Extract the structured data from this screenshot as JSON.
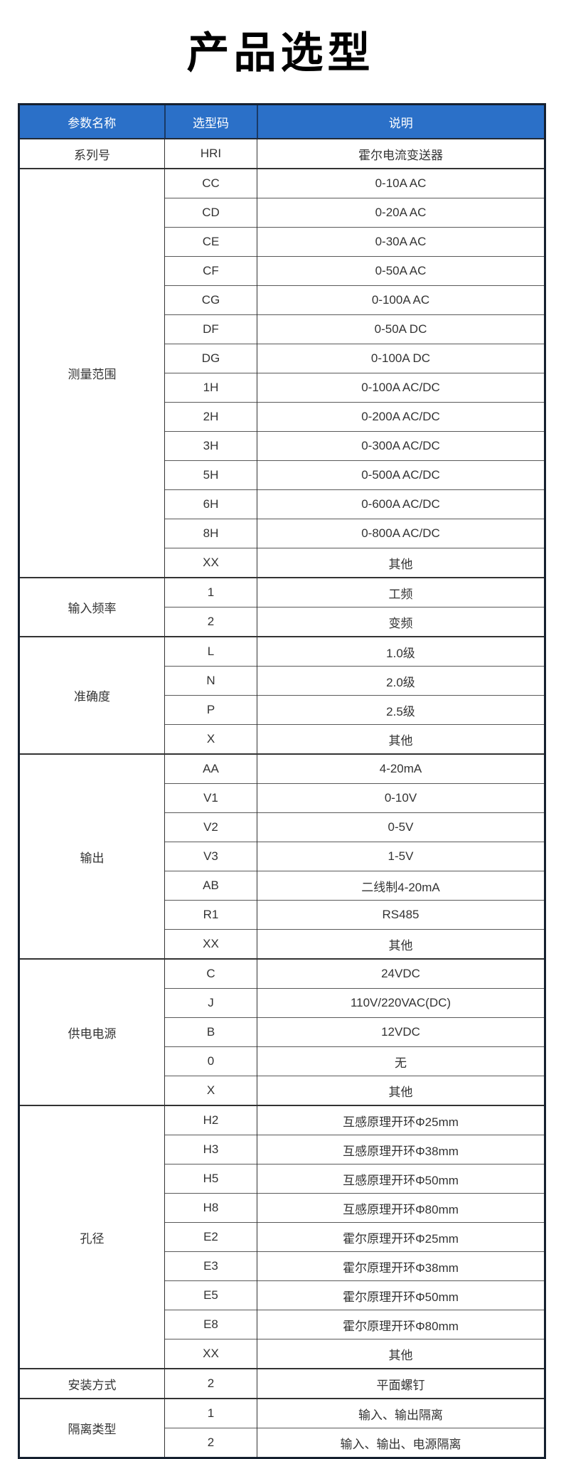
{
  "page": {
    "title": "产品选型"
  },
  "colors": {
    "header_bg": "#2b70c8",
    "header_text": "#ffffff",
    "outer_border": "#15202f",
    "grid_line": "#595959",
    "group_line": "#333333",
    "body_text": "#333333",
    "title_text": "#000000"
  },
  "table": {
    "headers": [
      "参数名称",
      "选型码",
      "说明"
    ],
    "groups": [
      {
        "param": "系列号",
        "rows": [
          {
            "code": "HRI",
            "desc": "霍尔电流变送器"
          }
        ]
      },
      {
        "param": "测量范围",
        "rows": [
          {
            "code": "CC",
            "desc": "0-10A AC"
          },
          {
            "code": "CD",
            "desc": "0-20A AC"
          },
          {
            "code": "CE",
            "desc": "0-30A AC"
          },
          {
            "code": "CF",
            "desc": "0-50A AC"
          },
          {
            "code": "CG",
            "desc": "0-100A AC"
          },
          {
            "code": "DF",
            "desc": "0-50A DC"
          },
          {
            "code": "DG",
            "desc": "0-100A DC"
          },
          {
            "code": "1H",
            "desc": "0-100A AC/DC"
          },
          {
            "code": "2H",
            "desc": "0-200A AC/DC"
          },
          {
            "code": "3H",
            "desc": "0-300A AC/DC"
          },
          {
            "code": "5H",
            "desc": "0-500A AC/DC"
          },
          {
            "code": "6H",
            "desc": "0-600A AC/DC"
          },
          {
            "code": "8H",
            "desc": "0-800A AC/DC"
          },
          {
            "code": "XX",
            "desc": "其他"
          }
        ]
      },
      {
        "param": "输入频率",
        "rows": [
          {
            "code": "1",
            "desc": "工频"
          },
          {
            "code": "2",
            "desc": "变频"
          }
        ]
      },
      {
        "param": "准确度",
        "rows": [
          {
            "code": "L",
            "desc": "1.0级"
          },
          {
            "code": "N",
            "desc": "2.0级"
          },
          {
            "code": "P",
            "desc": "2.5级"
          },
          {
            "code": "X",
            "desc": "其他"
          }
        ]
      },
      {
        "param": "输出",
        "rows": [
          {
            "code": "AA",
            "desc": "4-20mA"
          },
          {
            "code": "V1",
            "desc": "0-10V"
          },
          {
            "code": "V2",
            "desc": "0-5V"
          },
          {
            "code": "V3",
            "desc": "1-5V"
          },
          {
            "code": "AB",
            "desc": "二线制4-20mA"
          },
          {
            "code": "R1",
            "desc": "RS485"
          },
          {
            "code": "XX",
            "desc": "其他"
          }
        ]
      },
      {
        "param": "供电电源",
        "rows": [
          {
            "code": "C",
            "desc": "24VDC"
          },
          {
            "code": "J",
            "desc": "110V/220VAC(DC)"
          },
          {
            "code": "B",
            "desc": "12VDC"
          },
          {
            "code": "0",
            "desc": "无"
          },
          {
            "code": "X",
            "desc": "其他"
          }
        ]
      },
      {
        "param": "孔径",
        "rows": [
          {
            "code": "H2",
            "desc": "互感原理开环Φ25mm"
          },
          {
            "code": "H3",
            "desc": "互感原理开环Φ38mm"
          },
          {
            "code": "H5",
            "desc": "互感原理开环Φ50mm"
          },
          {
            "code": "H8",
            "desc": "互感原理开环Φ80mm"
          },
          {
            "code": "E2",
            "desc": "霍尔原理开环Φ25mm"
          },
          {
            "code": "E3",
            "desc": "霍尔原理开环Φ38mm"
          },
          {
            "code": "E5",
            "desc": "霍尔原理开环Φ50mm"
          },
          {
            "code": "E8",
            "desc": "霍尔原理开环Φ80mm"
          },
          {
            "code": "XX",
            "desc": "其他"
          }
        ]
      },
      {
        "param": "安装方式",
        "rows": [
          {
            "code": "2",
            "desc": "平面螺钉"
          }
        ]
      },
      {
        "param": "隔离类型",
        "rows": [
          {
            "code": "1",
            "desc": "输入、输出隔离"
          },
          {
            "code": "2",
            "desc": "输入、输出、电源隔离"
          }
        ]
      }
    ]
  }
}
